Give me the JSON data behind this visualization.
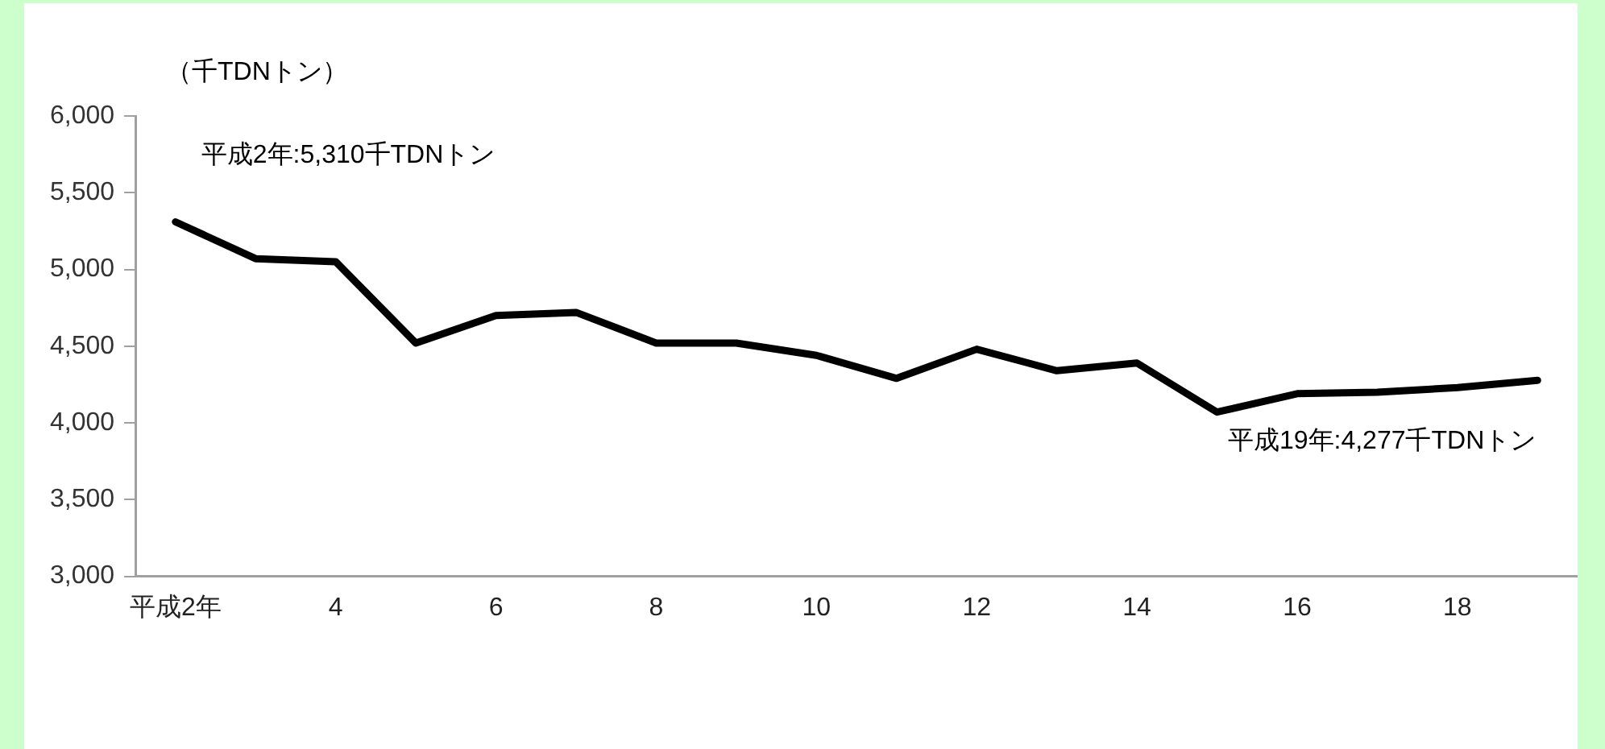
{
  "chart_data": {
    "type": "line",
    "ylabel": "（千TDNトン）",
    "categories": [
      "平成2年",
      null,
      "4",
      null,
      "6",
      null,
      "8",
      null,
      "10",
      null,
      "12",
      null,
      "14",
      null,
      "16",
      null,
      "18",
      null
    ],
    "series": [
      {
        "color": "#000000",
        "values": [
          5310,
          5070,
          5050,
          4520,
          4700,
          4720,
          4520,
          4520,
          4440,
          4290,
          4480,
          4340,
          4390,
          4070,
          4190,
          4200,
          4230,
          4277
        ]
      }
    ],
    "ylim": [
      3000,
      6000
    ],
    "yticks": [
      {
        "value": 3000,
        "label": "3,000"
      },
      {
        "value": 3500,
        "label": "3,500"
      },
      {
        "value": 4000,
        "label": "4,000"
      },
      {
        "value": 4500,
        "label": "4,500"
      },
      {
        "value": 5000,
        "label": "5,000"
      },
      {
        "value": 5500,
        "label": "5,500"
      },
      {
        "value": 6000,
        "label": "6,000"
      }
    ],
    "annotations": [
      "平成2年:5,310千TDNトン",
      "平成19年:4,277千TDNトン"
    ],
    "grid": false,
    "legend": false,
    "marker": "none",
    "line_style": "solid"
  }
}
